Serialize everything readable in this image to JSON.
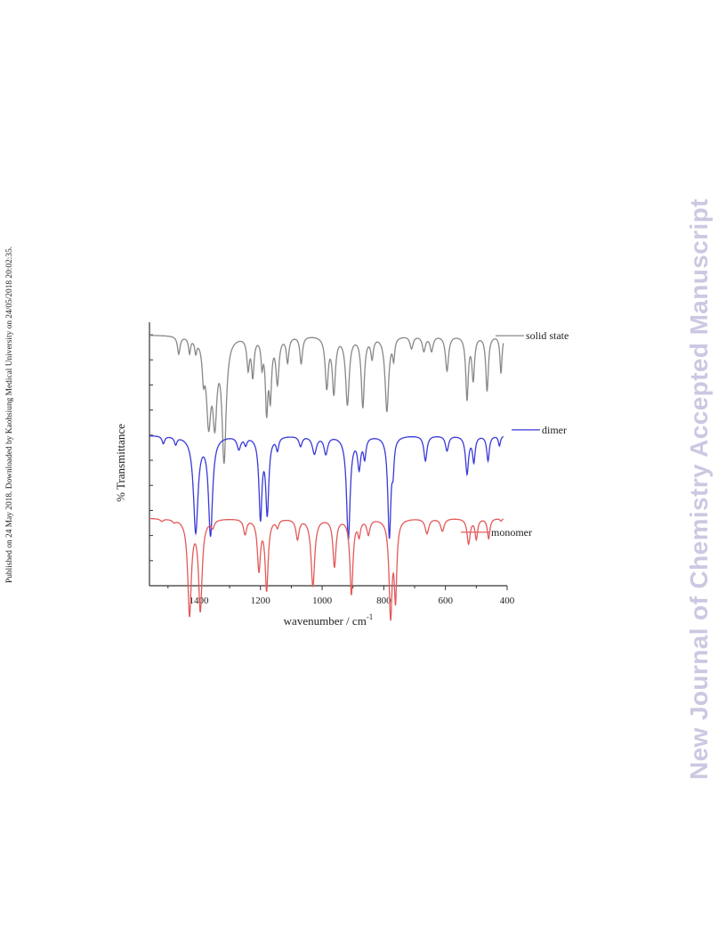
{
  "side_note": "Published on 24 May 2018. Downloaded by Kaohsiung Medical University on 24/05/2018 20:02:35.",
  "watermark": "New Journal of Chemistry Accepted Manuscript",
  "chart_data": {
    "type": "line",
    "title": "",
    "xlabel": "wavenumber / cm",
    "xlabel_sup": "-1",
    "ylabel": "% Transmittance",
    "xlim": [
      1560,
      400
    ],
    "x_reversed": true,
    "x_ticks": [
      1400,
      1200,
      1000,
      800,
      600,
      400
    ],
    "y_ticks_labeled": false,
    "grid": false,
    "legend": "inline-right",
    "series": [
      {
        "name": "solid state",
        "color": "#888888",
        "baseline": 1.0,
        "peaks": [
          [
            1465,
            0.07,
            5
          ],
          [
            1430,
            0.06,
            4
          ],
          [
            1410,
            0.05,
            4
          ],
          [
            1385,
            0.12,
            5
          ],
          [
            1368,
            0.32,
            9
          ],
          [
            1348,
            0.3,
            8
          ],
          [
            1318,
            0.48,
            8
          ],
          [
            1240,
            0.12,
            5
          ],
          [
            1225,
            0.15,
            5
          ],
          [
            1195,
            0.1,
            4
          ],
          [
            1180,
            0.28,
            5
          ],
          [
            1168,
            0.22,
            5
          ],
          [
            1145,
            0.18,
            6
          ],
          [
            1112,
            0.1,
            5
          ],
          [
            1068,
            0.11,
            5
          ],
          [
            985,
            0.2,
            6
          ],
          [
            962,
            0.22,
            6
          ],
          [
            918,
            0.27,
            7
          ],
          [
            868,
            0.28,
            6
          ],
          [
            838,
            0.08,
            5
          ],
          [
            790,
            0.3,
            7
          ],
          [
            768,
            0.08,
            4
          ],
          [
            710,
            0.05,
            6
          ],
          [
            670,
            0.06,
            6
          ],
          [
            645,
            0.06,
            6
          ],
          [
            595,
            0.14,
            6
          ],
          [
            530,
            0.25,
            5
          ],
          [
            510,
            0.17,
            5
          ],
          [
            465,
            0.22,
            5
          ],
          [
            420,
            0.15,
            4
          ]
        ]
      },
      {
        "name": "dimer",
        "color": "#3a3ad8",
        "baseline": 0.6,
        "peaks": [
          [
            1515,
            0.03,
            5
          ],
          [
            1475,
            0.03,
            5
          ],
          [
            1410,
            0.38,
            9
          ],
          [
            1362,
            0.39,
            8
          ],
          [
            1270,
            0.05,
            7
          ],
          [
            1248,
            0.03,
            5
          ],
          [
            1200,
            0.32,
            6
          ],
          [
            1178,
            0.3,
            6
          ],
          [
            1145,
            0.05,
            5
          ],
          [
            1070,
            0.04,
            6
          ],
          [
            1025,
            0.07,
            8
          ],
          [
            988,
            0.07,
            7
          ],
          [
            915,
            0.41,
            7
          ],
          [
            880,
            0.12,
            6
          ],
          [
            862,
            0.08,
            5
          ],
          [
            782,
            0.4,
            6
          ],
          [
            770,
            0.1,
            4
          ],
          [
            665,
            0.1,
            6
          ],
          [
            595,
            0.06,
            6
          ],
          [
            530,
            0.15,
            6
          ],
          [
            508,
            0.1,
            5
          ],
          [
            462,
            0.1,
            5
          ],
          [
            425,
            0.04,
            4
          ]
        ]
      },
      {
        "name": "monomer",
        "color": "#e25a5a",
        "baseline": 0.27,
        "peaks": [
          [
            1520,
            0.01,
            6
          ],
          [
            1480,
            0.01,
            6
          ],
          [
            1430,
            0.38,
            7
          ],
          [
            1395,
            0.36,
            7
          ],
          [
            1355,
            0.03,
            6
          ],
          [
            1250,
            0.06,
            6
          ],
          [
            1205,
            0.2,
            6
          ],
          [
            1180,
            0.28,
            6
          ],
          [
            1145,
            0.03,
            5
          ],
          [
            1080,
            0.08,
            6
          ],
          [
            1030,
            0.27,
            7
          ],
          [
            960,
            0.19,
            6
          ],
          [
            905,
            0.3,
            6
          ],
          [
            880,
            0.06,
            5
          ],
          [
            850,
            0.06,
            6
          ],
          [
            778,
            0.38,
            6
          ],
          [
            762,
            0.3,
            5
          ],
          [
            660,
            0.06,
            7
          ],
          [
            610,
            0.05,
            7
          ],
          [
            525,
            0.1,
            6
          ],
          [
            500,
            0.08,
            5
          ],
          [
            460,
            0.08,
            5
          ],
          [
            420,
            0.01,
            4
          ]
        ]
      }
    ]
  }
}
